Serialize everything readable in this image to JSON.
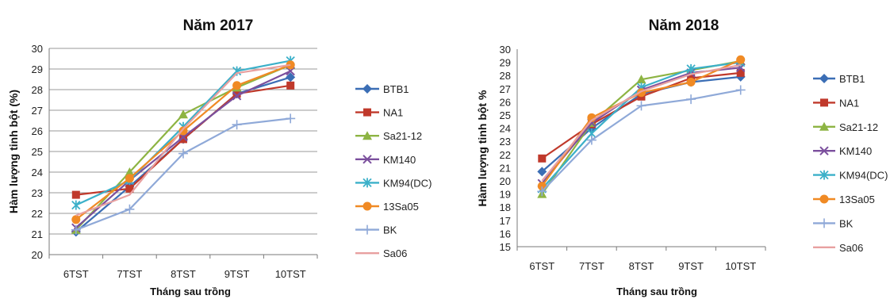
{
  "chart_data": [
    {
      "type": "line",
      "title": "Năm 2017",
      "xlabel": "Tháng sau trồng",
      "ylabel": "Hàm lượng tinh bột (%)",
      "categories": [
        "6TST",
        "7TST",
        "8TST",
        "9TST",
        "10TST"
      ],
      "ylim": [
        20,
        30
      ],
      "yticks": [
        20,
        21,
        22,
        23,
        24,
        25,
        26,
        27,
        28,
        29,
        30
      ],
      "grid": true,
      "legend_position": "right",
      "series": [
        {
          "name": "BTB1",
          "color": "#3b6eb5",
          "marker": "diamond",
          "values": [
            21.1,
            23.3,
            25.6,
            27.8,
            28.6
          ]
        },
        {
          "name": "NA1",
          "color": "#c0392b",
          "marker": "square",
          "values": [
            22.9,
            23.2,
            25.6,
            27.8,
            28.2
          ]
        },
        {
          "name": "Sa21-12",
          "color": "#8db443",
          "marker": "triangle",
          "values": [
            21.2,
            24.0,
            26.8,
            28.1,
            29.2
          ]
        },
        {
          "name": "KM140",
          "color": "#7b4f9d",
          "marker": "x",
          "values": [
            21.3,
            23.6,
            25.7,
            27.7,
            28.9
          ]
        },
        {
          "name": "KM94(DC)",
          "color": "#3bb0c9",
          "marker": "star",
          "values": [
            22.4,
            23.6,
            26.2,
            28.9,
            29.4
          ]
        },
        {
          "name": "13Sa05",
          "color": "#f08a24",
          "marker": "circle",
          "values": [
            21.7,
            23.7,
            26.0,
            28.2,
            29.2
          ]
        },
        {
          "name": "BK",
          "color": "#8fa9d8",
          "marker": "plus",
          "values": [
            21.2,
            22.2,
            24.9,
            26.3,
            26.6
          ]
        },
        {
          "name": "Sa06",
          "color": "#e8a0a0",
          "marker": "none",
          "values": [
            21.9,
            22.9,
            26.1,
            28.8,
            29.2
          ]
        }
      ]
    },
    {
      "type": "line",
      "title": "Năm 2018",
      "xlabel": "Tháng sau trồng",
      "ylabel": "Hàm lượng tinh bột %",
      "categories": [
        "6TST",
        "7TST",
        "8TST",
        "9TST",
        "10TST"
      ],
      "ylim": [
        15,
        30
      ],
      "yticks": [
        15,
        16,
        17,
        18,
        19,
        20,
        21,
        22,
        23,
        24,
        25,
        26,
        27,
        28,
        29,
        30
      ],
      "grid": false,
      "legend_position": "right",
      "series": [
        {
          "name": "BTB1",
          "color": "#3b6eb5",
          "marker": "diamond",
          "values": [
            20.7,
            24.0,
            26.6,
            27.5,
            27.9
          ]
        },
        {
          "name": "NA1",
          "color": "#c0392b",
          "marker": "square",
          "values": [
            21.7,
            24.3,
            26.4,
            27.8,
            28.2
          ]
        },
        {
          "name": "Sa21-12",
          "color": "#8db443",
          "marker": "triangle",
          "values": [
            19.0,
            24.4,
            27.7,
            28.4,
            29.1
          ]
        },
        {
          "name": "KM140",
          "color": "#7b4f9d",
          "marker": "x",
          "values": [
            19.8,
            24.4,
            26.9,
            28.2,
            28.6
          ]
        },
        {
          "name": "KM94(DC)",
          "color": "#3bb0c9",
          "marker": "star",
          "values": [
            19.4,
            23.6,
            27.1,
            28.5,
            29.0
          ]
        },
        {
          "name": "13Sa05",
          "color": "#f08a24",
          "marker": "circle",
          "values": [
            19.6,
            24.8,
            26.7,
            27.5,
            29.2
          ]
        },
        {
          "name": "BK",
          "color": "#8fa9d8",
          "marker": "plus",
          "values": [
            19.2,
            23.1,
            25.7,
            26.2,
            26.9
          ]
        },
        {
          "name": "Sa06",
          "color": "#e8a0a0",
          "marker": "none",
          "values": [
            20.0,
            24.6,
            26.8,
            28.1,
            28.8
          ]
        }
      ]
    }
  ]
}
